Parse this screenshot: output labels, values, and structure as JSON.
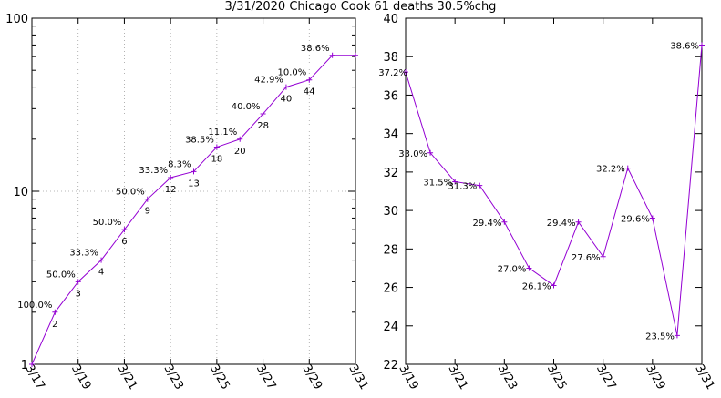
{
  "title": "3/31/2020 Chicago Cook 61 deaths 30.5%chg",
  "colors": {
    "series": "#9400d3",
    "grid": "#a0a0a0",
    "axis": "#000000"
  },
  "chart_data": [
    {
      "type": "line",
      "yscale": "log",
      "ylim": [
        1,
        100
      ],
      "y_ticks": [
        "1",
        "10",
        "100"
      ],
      "x_ticks": [
        "3/17",
        "3/19",
        "3/21",
        "3/23",
        "3/25",
        "3/27",
        "3/29",
        "3/31"
      ],
      "grid": true,
      "series": [
        {
          "x": [
            "3/17",
            "3/18",
            "3/19",
            "3/20",
            "3/21",
            "3/22",
            "3/23",
            "3/24",
            "3/25",
            "3/26",
            "3/27",
            "3/28",
            "3/29",
            "3/30",
            "3/31"
          ],
          "values": [
            1,
            2,
            3,
            4,
            6,
            9,
            12,
            13,
            18,
            20,
            28,
            40,
            44,
            61,
            61
          ],
          "count_labels": [
            "",
            "2",
            "3",
            "4",
            "6",
            "9",
            "12",
            "13",
            "18",
            "20",
            "28",
            "40",
            "44",
            "",
            ""
          ],
          "pct_labels": [
            "",
            "100.0%",
            "50.0%",
            "33.3%",
            "50.0%",
            "50.0%",
            "33.3%",
            "8.3%",
            "38.5%",
            "11.1%",
            "40.0%",
            "42.9%",
            "10.0%",
            "38.6%",
            ""
          ]
        }
      ]
    },
    {
      "type": "line",
      "ylim": [
        22,
        40
      ],
      "y_ticks": [
        "22",
        "24",
        "26",
        "28",
        "30",
        "32",
        "34",
        "36",
        "38",
        "40"
      ],
      "x_ticks": [
        "3/19",
        "3/21",
        "3/23",
        "3/25",
        "3/27",
        "3/29",
        "3/31"
      ],
      "grid": false,
      "series": [
        {
          "x": [
            "3/19",
            "3/20",
            "3/21",
            "3/22",
            "3/23",
            "3/24",
            "3/25",
            "3/26",
            "3/27",
            "3/28",
            "3/29",
            "3/30",
            "3/31"
          ],
          "values": [
            37.2,
            33.0,
            31.5,
            31.3,
            29.4,
            27.0,
            26.1,
            29.4,
            27.6,
            32.2,
            29.6,
            23.5,
            38.6
          ],
          "labels": [
            "37.2%",
            "33.0%",
            "31.5%",
            "31.3%",
            "29.4%",
            "27.0%",
            "26.1%",
            "29.4%",
            "27.6%",
            "32.2%",
            "29.6%",
            "23.5%",
            "38.6%"
          ]
        }
      ]
    }
  ]
}
